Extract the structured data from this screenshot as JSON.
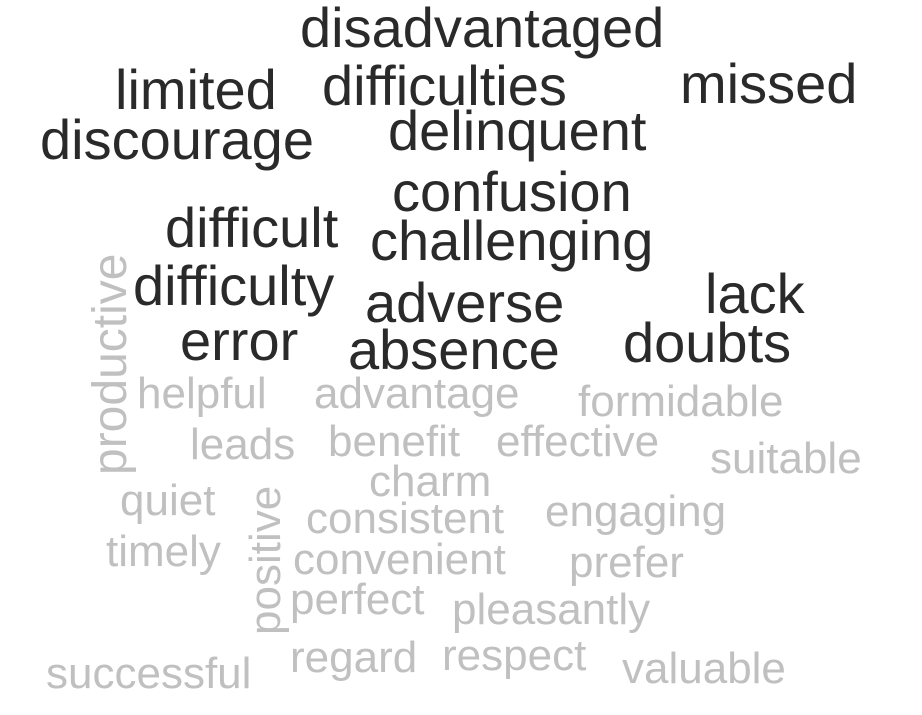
{
  "colors": {
    "negative": "#2a2a2a",
    "positive": "#c0c0c0",
    "background": "#ffffff"
  },
  "negative_words": [
    "disadvantaged",
    "limited",
    "difficulties",
    "missed",
    "discourage",
    "delinquent",
    "confusion",
    "difficult",
    "challenging",
    "difficulty",
    "lack",
    "adverse",
    "error",
    "doubts",
    "absence"
  ],
  "positive_words": [
    "productive",
    "helpful",
    "advantage",
    "formidable",
    "leads",
    "benefit",
    "effective",
    "suitable",
    "charm",
    "quiet",
    "engaging",
    "consistent",
    "positive",
    "timely",
    "convenient",
    "prefer",
    "perfect",
    "pleasantly",
    "regard",
    "respect",
    "successful",
    "valuable"
  ]
}
